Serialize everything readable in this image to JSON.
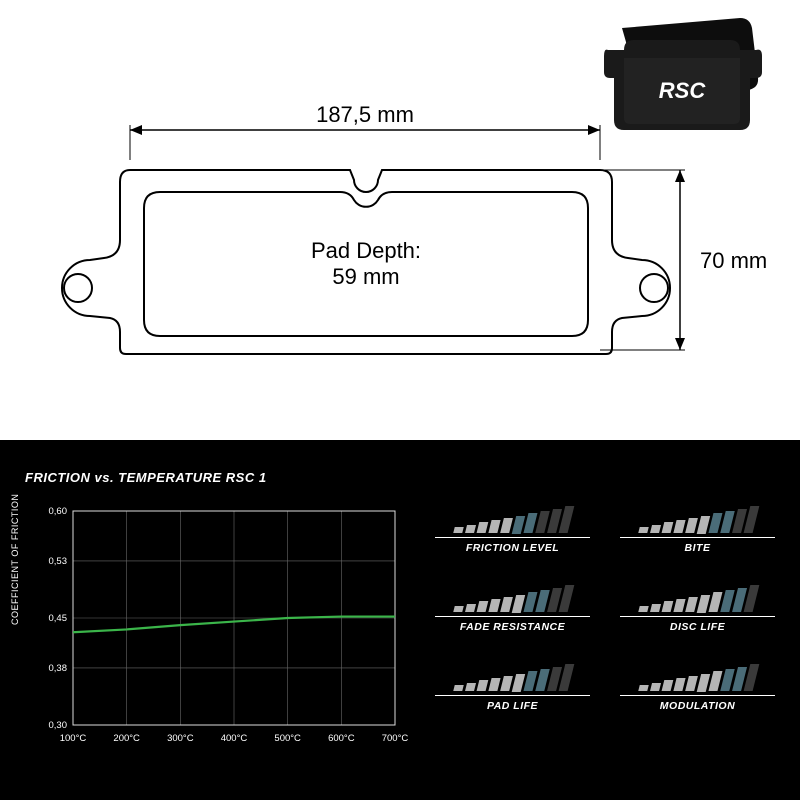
{
  "thumbnail": {
    "brand_text": "RSC",
    "body_color": "#1a1a1a",
    "text_color": "#ffffff"
  },
  "diagram": {
    "width_label": "187,5 mm",
    "height_label": "70 mm",
    "pad_depth_label_line1": "Pad Depth:",
    "pad_depth_label_line2": "59 mm",
    "stroke_color": "#000000",
    "stroke_width": 2,
    "label_fontsize": 22
  },
  "chart": {
    "title": "FRICTION vs. TEMPERATURE RSC 1",
    "y_axis_label": "COEFFICIENT OF FRICTION",
    "y_ticks": [
      "0,30",
      "0,38",
      "0,45",
      "0,53",
      "0,60"
    ],
    "x_ticks": [
      "100°C",
      "200°C",
      "300°C",
      "400°C",
      "500°C",
      "600°C",
      "700°C"
    ],
    "line_color": "#3bb54a",
    "grid_color": "#6a6a6a",
    "axis_color": "#dddddd",
    "text_color": "#ffffff",
    "background_color": "#000000",
    "line_points": [
      {
        "x": 100,
        "y": 0.43
      },
      {
        "x": 200,
        "y": 0.434
      },
      {
        "x": 300,
        "y": 0.44
      },
      {
        "x": 400,
        "y": 0.445
      },
      {
        "x": 500,
        "y": 0.45
      },
      {
        "x": 600,
        "y": 0.452
      },
      {
        "x": 700,
        "y": 0.452
      }
    ],
    "x_domain": [
      100,
      700
    ],
    "y_domain": [
      0.3,
      0.6
    ]
  },
  "ratings": {
    "bar_count": 10,
    "bar_color_filled": "#b5b5b5",
    "bar_color_highlight": "#4a6c78",
    "bar_color_empty": "#3a3a3a",
    "items": [
      {
        "label": "FRICTION LEVEL",
        "value": 7
      },
      {
        "label": "BITE",
        "value": 8
      },
      {
        "label": "FADE RESISTANCE",
        "value": 8
      },
      {
        "label": "DISC LIFE",
        "value": 9
      },
      {
        "label": "PAD LIFE",
        "value": 8
      },
      {
        "label": "MODULATION",
        "value": 9
      }
    ]
  }
}
